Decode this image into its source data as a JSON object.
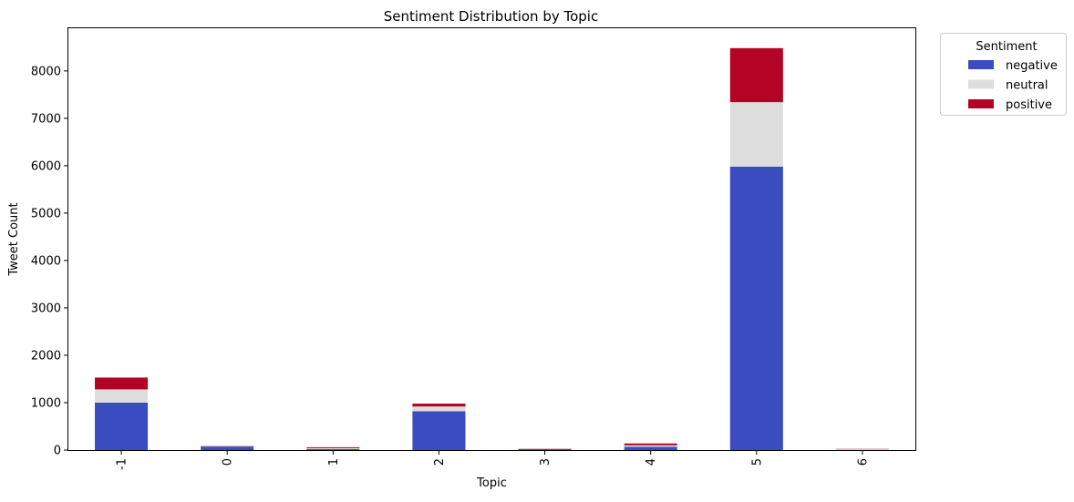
{
  "chart_data": {
    "type": "bar",
    "stacked": true,
    "title": "Sentiment Distribution by Topic",
    "xlabel": "Topic",
    "ylabel": "Tweet Count",
    "categories": [
      "-1",
      "0",
      "1",
      "2",
      "3",
      "4",
      "5",
      "6"
    ],
    "ylim": [
      0,
      8900
    ],
    "yticks": [
      0,
      1000,
      2000,
      3000,
      4000,
      5000,
      6000,
      7000,
      8000
    ],
    "grid": false,
    "legend": {
      "title": "Sentiment",
      "placement": "outside-top-right"
    },
    "series": [
      {
        "name": "negative",
        "color": "#3b4cc0",
        "values": [
          1000,
          75,
          20,
          820,
          20,
          70,
          5980,
          5
        ]
      },
      {
        "name": "neutral",
        "color": "#dddddd",
        "values": [
          280,
          8,
          20,
          100,
          5,
          30,
          1360,
          15
        ]
      },
      {
        "name": "positive",
        "color": "#b40426",
        "values": [
          250,
          5,
          20,
          60,
          5,
          40,
          1140,
          5
        ]
      }
    ]
  }
}
